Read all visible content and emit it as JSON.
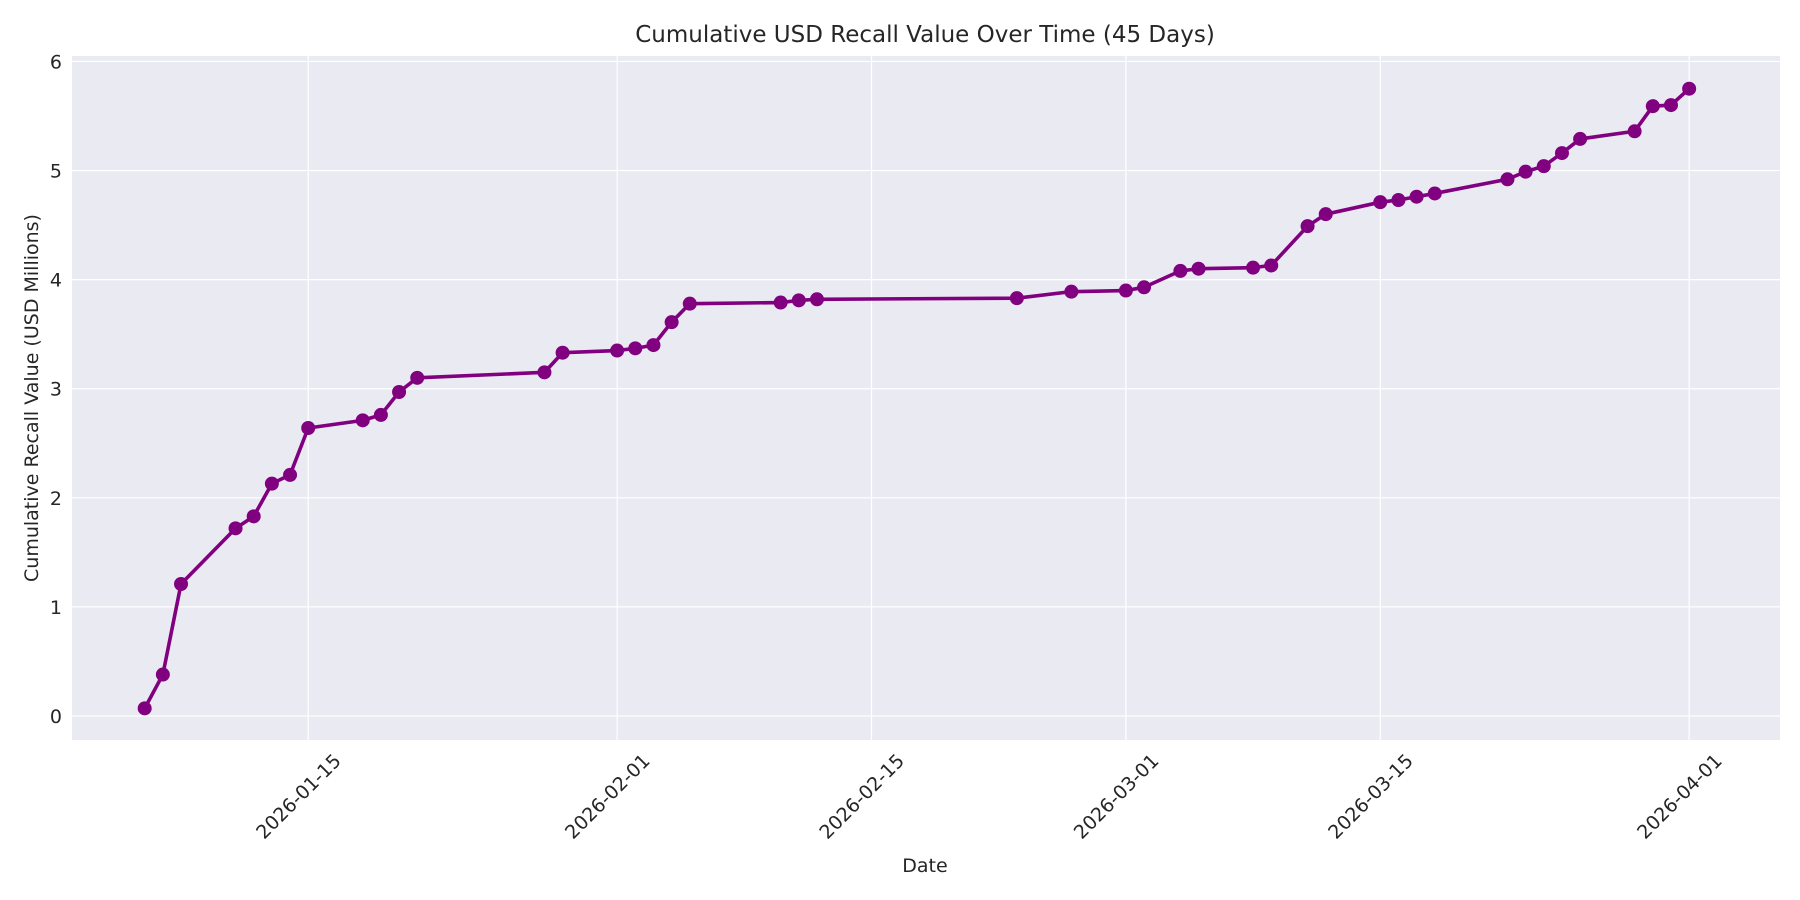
{
  "chart_data": {
    "type": "line",
    "title": "Cumulative USD Recall Value Over Time (45 Days)",
    "xlabel": "Date",
    "ylabel": "Cumulative Recall Value (USD Millions)",
    "xlim": [
      "2026-01-02",
      "2026-04-06"
    ],
    "ylim": [
      -0.22,
      6.05
    ],
    "x_ticks": [
      "2026-01-15",
      "2026-02-01",
      "2026-02-15",
      "2026-03-01",
      "2026-03-15",
      "2026-04-01"
    ],
    "y_ticks": [
      0,
      1,
      2,
      3,
      4,
      5,
      6
    ],
    "grid": true,
    "line_color": "#800080",
    "background_color": "#eaeaf2",
    "grid_color": "#ffffff",
    "series": [
      {
        "x": [
          "2026-01-06",
          "2026-01-07",
          "2026-01-08",
          "2026-01-11",
          "2026-01-12",
          "2026-01-13",
          "2026-01-14",
          "2026-01-15",
          "2026-01-18",
          "2026-01-19",
          "2026-01-20",
          "2026-01-21",
          "2026-01-28",
          "2026-01-29",
          "2026-02-01",
          "2026-02-02",
          "2026-02-03",
          "2026-02-04",
          "2026-02-05",
          "2026-02-10",
          "2026-02-11",
          "2026-02-12",
          "2026-02-23",
          "2026-02-26",
          "2026-03-01",
          "2026-03-02",
          "2026-03-04",
          "2026-03-05",
          "2026-03-08",
          "2026-03-09",
          "2026-03-11",
          "2026-03-12",
          "2026-03-15",
          "2026-03-16",
          "2026-03-17",
          "2026-03-18",
          "2026-03-22",
          "2026-03-23",
          "2026-03-24",
          "2026-03-25",
          "2026-03-26",
          "2026-03-29",
          "2026-03-30",
          "2026-03-31",
          "2026-04-01"
        ],
        "values": [
          0.07,
          0.38,
          1.21,
          1.72,
          1.83,
          2.13,
          2.21,
          2.64,
          2.71,
          2.76,
          2.97,
          3.1,
          3.15,
          3.33,
          3.35,
          3.37,
          3.4,
          3.61,
          3.78,
          3.79,
          3.81,
          3.82,
          3.83,
          3.89,
          3.9,
          3.93,
          4.08,
          4.1,
          4.11,
          4.13,
          4.49,
          4.6,
          4.71,
          4.73,
          4.76,
          4.79,
          4.92,
          4.99,
          5.04,
          5.16,
          5.29,
          5.36,
          5.59,
          5.6,
          5.75
        ]
      }
    ]
  }
}
